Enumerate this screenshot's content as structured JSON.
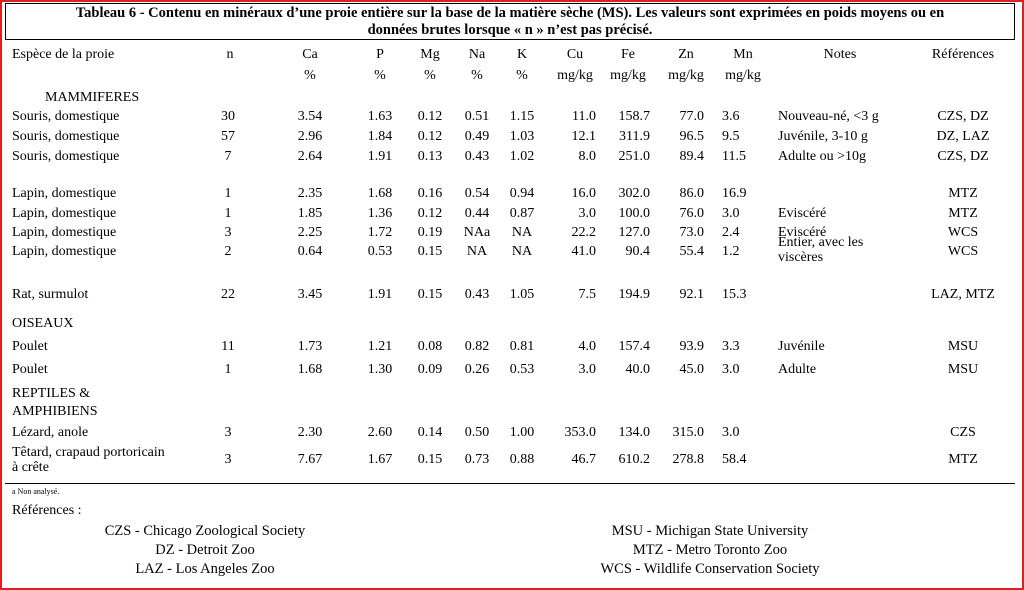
{
  "title_line1": "Tableau 6 -  Contenu en minéraux d’une proie entière  sur la base de la matière sèche (MS). Les valeurs sont exprimées en poids moyens ou en",
  "title_line2": "données brutes lorsque « n » n’est pas précisé.",
  "headers": {
    "species": "Espèce de la proie",
    "n": "n",
    "ca": "Ca",
    "ca_unit": "%",
    "p": "P",
    "p_unit": "%",
    "mg": "Mg",
    "mg_unit": "%",
    "na": "Na",
    "na_unit": "%",
    "k": "K",
    "k_unit": "%",
    "cu": "Cu",
    "cu_unit": "mg/kg",
    "fe": "Fe",
    "fe_unit": "mg/kg",
    "zn": "Zn",
    "zn_unit": "mg/kg",
    "mn": "Mn",
    "mn_unit": "mg/kg",
    "notes": "Notes",
    "refs": "Références"
  },
  "sections": {
    "mammals": "MAMMIFERES",
    "birds": "OISEAUX",
    "reptiles_1": "REPTILES &",
    "reptiles_2": "AMPHIBIENS"
  },
  "rows": [
    {
      "species": "Souris, domestique",
      "n": "30",
      "ca": "3.54",
      "p": "1.63",
      "mg": "0.12",
      "na": "0.51",
      "k": "1.15",
      "cu": "11.0",
      "fe": "158.7",
      "zn": "77.0",
      "mn": "3.6",
      "notes": "Nouveau-né, <3 g",
      "refs": "CZS, DZ"
    },
    {
      "species": "Souris, domestique",
      "n": "57",
      "ca": "2.96",
      "p": "1.84",
      "mg": "0.12",
      "na": "0.49",
      "k": "1.03",
      "cu": "12.1",
      "fe": "311.9",
      "zn": "96.5",
      "mn": "9.5",
      "notes": "Juvénile, 3-10 g",
      "refs": "DZ, LAZ"
    },
    {
      "species": "Souris, domestique",
      "n": "7",
      "ca": "2.64",
      "p": "1.91",
      "mg": "0.13",
      "na": "0.43",
      "k": "1.02",
      "cu": "8.0",
      "fe": "251.0",
      "zn": "89.4",
      "mn": "11.5",
      "notes": "Adulte ou >10g",
      "refs": "CZS, DZ"
    },
    {
      "species": "Lapin, domestique",
      "n": "1",
      "ca": "2.35",
      "p": "1.68",
      "mg": "0.16",
      "na": "0.54",
      "k": "0.94",
      "cu": "16.0",
      "fe": "302.0",
      "zn": "86.0",
      "mn": "16.9",
      "notes": "",
      "refs": "MTZ"
    },
    {
      "species": "Lapin, domestique",
      "n": "1",
      "ca": "1.85",
      "p": "1.36",
      "mg": "0.12",
      "na": "0.44",
      "k": "0.87",
      "cu": "3.0",
      "fe": "100.0",
      "zn": "76.0",
      "mn": "3.0",
      "notes": "Eviscéré",
      "refs": "MTZ"
    },
    {
      "species": "Lapin, domestique",
      "n": "3",
      "ca": "2.25",
      "p": "1.72",
      "mg": "0.19",
      "na": "NAa",
      "k": "NA",
      "cu": "22.2",
      "fe": "127.0",
      "zn": "73.0",
      "mn": "2.4",
      "notes": "Eviscéré",
      "refs": "WCS"
    },
    {
      "species": "Lapin, domestique",
      "n": "2",
      "ca": "0.64",
      "p": "0.53",
      "mg": "0.15",
      "na": "NA",
      "k": "NA",
      "cu": "41.0",
      "fe": "90.4",
      "zn": "55.4",
      "mn": "1.2",
      "notes": "Entier, avec les viscères",
      "refs": "WCS"
    },
    {
      "species": "Rat, surmulot",
      "n": "22",
      "ca": "3.45",
      "p": "1.91",
      "mg": "0.15",
      "na": "0.43",
      "k": "1.05",
      "cu": "7.5",
      "fe": "194.9",
      "zn": "92.1",
      "mn": "15.3",
      "notes": "",
      "refs": "LAZ, MTZ"
    },
    {
      "species": "Poulet",
      "n": "11",
      "ca": "1.73",
      "p": "1.21",
      "mg": "0.08",
      "na": "0.82",
      "k": "0.81",
      "cu": "4.0",
      "fe": "157.4",
      "zn": "93.9",
      "mn": "3.3",
      "notes": "Juvénile",
      "refs": "MSU"
    },
    {
      "species": "Poulet",
      "n": "1",
      "ca": "1.68",
      "p": "1.30",
      "mg": "0.09",
      "na": "0.26",
      "k": "0.53",
      "cu": "3.0",
      "fe": "40.0",
      "zn": "45.0",
      "mn": "3.0",
      "notes": "Adulte",
      "refs": "MSU"
    },
    {
      "species": "Lézard, anole",
      "n": "3",
      "ca": "2.30",
      "p": "2.60",
      "mg": "0.14",
      "na": "0.50",
      "k": "1.00",
      "cu": "353.0",
      "fe": "134.0",
      "zn": "315.0",
      "mn": "3.0",
      "notes": "",
      "refs": "CZS"
    },
    {
      "species": "Têtard, crapaud portoricain à crête",
      "n": "3",
      "ca": "7.67",
      "p": "1.67",
      "mg": "0.15",
      "na": "0.73",
      "k": "0.88",
      "cu": "46.7",
      "fe": "610.2",
      "zn": "278.8",
      "mn": "58.4",
      "notes": "",
      "refs": "MTZ"
    }
  ],
  "footnote": "a Non analysé.",
  "references_title": "Références :",
  "references_left": [
    "CZS - Chicago Zoological Society",
    "DZ - Detroit Zoo",
    "LAZ - Los Angeles Zoo"
  ],
  "references_right": [
    "MSU - Michigan State University",
    "MTZ - Metro Toronto Zoo",
    "WCS - Wildlife Conservation Society"
  ]
}
